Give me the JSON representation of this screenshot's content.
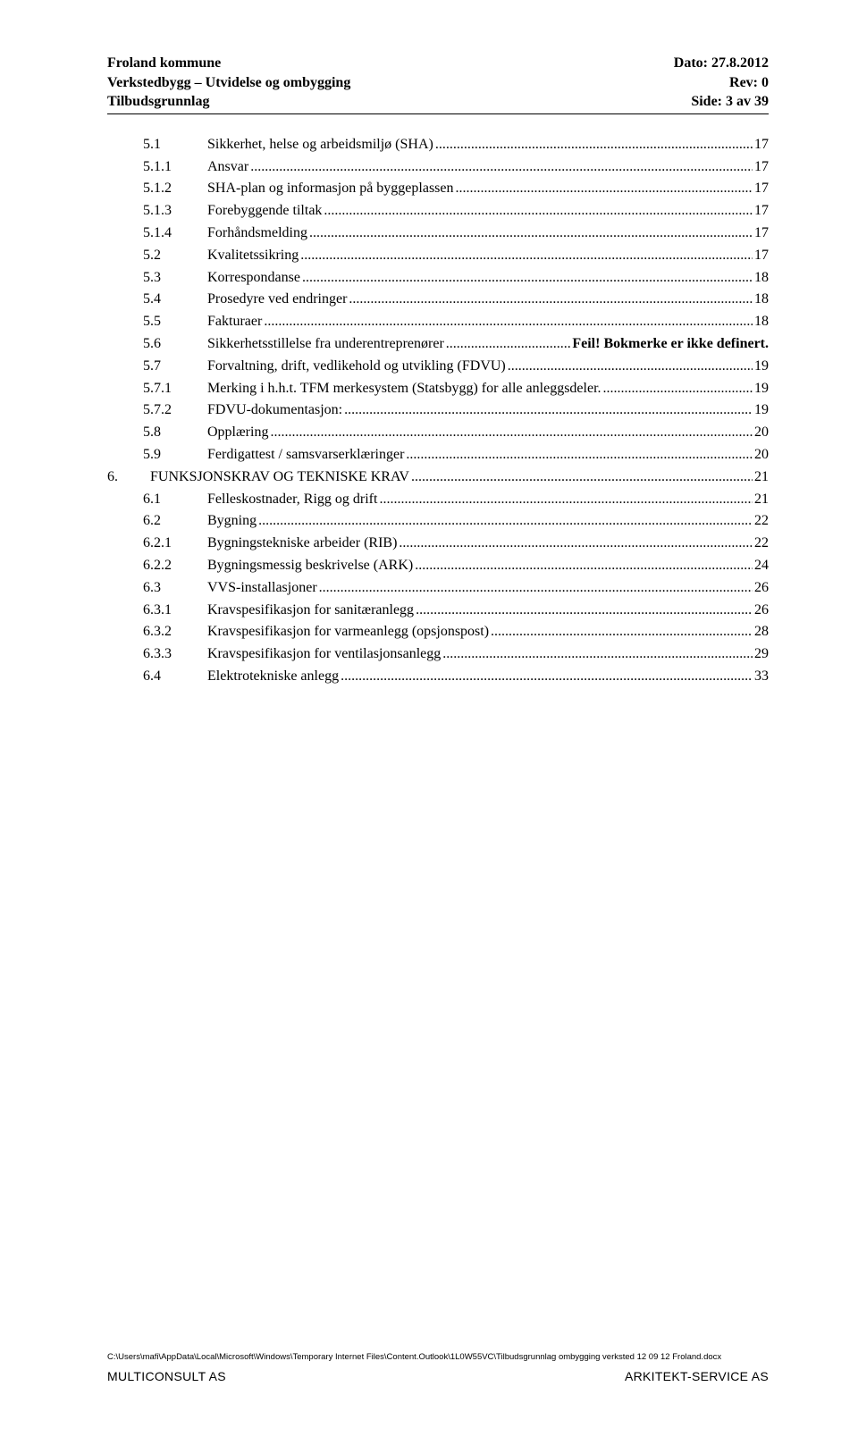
{
  "header": {
    "left_lines": [
      "Froland kommune",
      "Verkstedbygg – Utvidelse og ombygging",
      "Tilbudsgrunnlag"
    ],
    "right_lines": [
      "Dato: 27.8.2012",
      "Rev:  0",
      "Side:  3 av 39"
    ],
    "bold_line_indices": [
      0
    ],
    "rule_color": "#000000"
  },
  "toc": {
    "font_size_pt": 12,
    "entries": [
      {
        "level": 1,
        "num": "5.1",
        "title": "Sikkerhet, helse og arbeidsmiljø (SHA)",
        "page": "17"
      },
      {
        "level": 2,
        "num": "5.1.1",
        "title": "Ansvar",
        "page": "17"
      },
      {
        "level": 2,
        "num": "5.1.2",
        "title": "SHA-plan og informasjon på byggeplassen",
        "page": "17"
      },
      {
        "level": 2,
        "num": "5.1.3",
        "title": "Forebyggende tiltak",
        "page": "17"
      },
      {
        "level": 2,
        "num": "5.1.4",
        "title": "Forhåndsmelding",
        "page": "17"
      },
      {
        "level": 1,
        "num": "5.2",
        "title": "Kvalitetssikring",
        "page": "17"
      },
      {
        "level": 1,
        "num": "5.3",
        "title": "Korrespondanse",
        "page": "18"
      },
      {
        "level": 1,
        "num": "5.4",
        "title": "Prosedyre ved endringer",
        "page": "18"
      },
      {
        "level": 1,
        "num": "5.5",
        "title": "Fakturaer",
        "page": "18"
      },
      {
        "level": 1,
        "num": "5.6",
        "title": "Sikkerhetsstillelse fra underentreprenører",
        "page": "Feil! Bokmerke er ikke definert.",
        "is_error": true
      },
      {
        "level": 1,
        "num": "5.7",
        "title": "Forvaltning, drift, vedlikehold og utvikling (FDVU)",
        "page": "19"
      },
      {
        "level": 2,
        "num": "5.7.1",
        "title": "Merking i h.h.t. TFM merkesystem (Statsbygg) for alle anleggsdeler.",
        "page": "19"
      },
      {
        "level": 2,
        "num": "5.7.2",
        "title": "FDVU-dokumentasjon:",
        "page": "19"
      },
      {
        "level": 1,
        "num": "5.8",
        "title": "Opplæring",
        "page": "20"
      },
      {
        "level": 1,
        "num": "5.9",
        "title": "Ferdigattest / samsvarserklæringer",
        "page": "20"
      },
      {
        "level": 0,
        "num": "6.",
        "title": "FUNKSJONSKRAV OG TEKNISKE KRAV",
        "page": "21"
      },
      {
        "level": 1,
        "num": "6.1",
        "title": "Felleskostnader, Rigg og drift",
        "page": "21"
      },
      {
        "level": 1,
        "num": "6.2",
        "title": "Bygning",
        "page": "22"
      },
      {
        "level": 2,
        "num": "6.2.1",
        "title": "Bygningstekniske arbeider (RIB)",
        "page": "22"
      },
      {
        "level": 2,
        "num": "6.2.2",
        "title": "Bygningsmessig beskrivelse (ARK)",
        "page": "24"
      },
      {
        "level": 1,
        "num": "6.3",
        "title": "VVS-installasjoner",
        "page": "26"
      },
      {
        "level": 2,
        "num": "6.3.1",
        "title": "Kravspesifikasjon for sanitæranlegg",
        "page": "26"
      },
      {
        "level": 2,
        "num": "6.3.2",
        "title": "Kravspesifikasjon for varmeanlegg (opsjonspost)",
        "page": "28"
      },
      {
        "level": 2,
        "num": "6.3.3",
        "title": "Kravspesifikasjon for ventilasjonsanlegg",
        "page": "29"
      },
      {
        "level": 1,
        "num": "6.4",
        "title": "Elektrotekniske anlegg",
        "page": "33"
      }
    ]
  },
  "footer": {
    "path": "C:\\Users\\mafi\\AppData\\Local\\Microsoft\\Windows\\Temporary Internet Files\\Content.Outlook\\1L0W55VC\\Tilbudsgrunnlag ombygging verksted 12 09 12 Froland.docx",
    "left": "MULTICONSULT AS",
    "right": "ARKITEKT-SERVICE AS"
  },
  "colors": {
    "text": "#000000",
    "background": "#ffffff"
  }
}
